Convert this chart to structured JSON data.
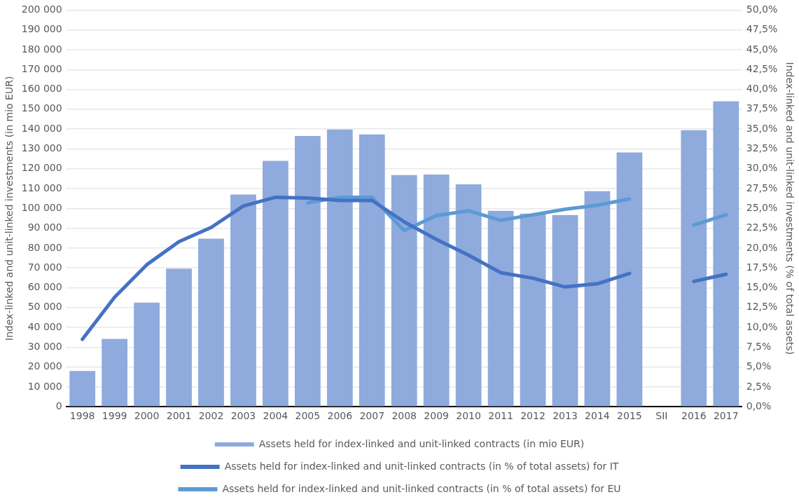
{
  "chart_data": {
    "type": "bar",
    "ylabel": "Index-linked and unit-linked investments (in mio EUR)",
    "y2label": "Index-linked and unit-linked investments (% of total assets)",
    "categories": [
      "1998",
      "1999",
      "2000",
      "2001",
      "2002",
      "2003",
      "2004",
      "2005",
      "2006",
      "2007",
      "2008",
      "2009",
      "2010",
      "2011",
      "2012",
      "2013",
      "2014",
      "2015",
      "SII",
      "2016",
      "2017"
    ],
    "series": [
      {
        "name": "Assets held for index-linked and unit-linked contracts (in mio EUR)",
        "color": "#8faadc",
        "values": [
          18000,
          34200,
          52500,
          69600,
          84700,
          107000,
          124000,
          136500,
          139800,
          137300,
          116800,
          117100,
          112100,
          98800,
          97400,
          96700,
          108700,
          128200,
          null,
          139400,
          154000
        ]
      },
      {
        "name": "Assets held for index-linked and unit-linked contracts (in % of total assets) for IT",
        "type": "line",
        "axis": "y2",
        "color": "#4472c4",
        "values": [
          8.5,
          13.8,
          17.9,
          20.8,
          22.6,
          25.3,
          26.4,
          26.3,
          26.0,
          26.0,
          23.3,
          21.1,
          19.1,
          16.9,
          16.2,
          15.1,
          15.5,
          16.8,
          null,
          15.8,
          16.7
        ]
      },
      {
        "name": "Assets held for index-linked and unit-linked contracts (in % of total assets) for EU",
        "type": "line",
        "axis": "y2",
        "color": "#5b9bd5",
        "values": [
          null,
          null,
          null,
          null,
          null,
          null,
          null,
          25.7,
          26.4,
          26.4,
          22.2,
          24.1,
          24.7,
          23.5,
          24.2,
          24.9,
          25.4,
          26.2,
          null,
          22.9,
          24.2
        ]
      }
    ],
    "ylim": [
      0,
      200000
    ],
    "yticks": [
      {
        "value": 0,
        "label": "0"
      },
      {
        "value": 10000,
        "label": "10 000"
      },
      {
        "value": 20000,
        "label": "20 000"
      },
      {
        "value": 30000,
        "label": "30 000"
      },
      {
        "value": 40000,
        "label": "40 000"
      },
      {
        "value": 50000,
        "label": "50 000"
      },
      {
        "value": 60000,
        "label": "60 000"
      },
      {
        "value": 70000,
        "label": "70 000"
      },
      {
        "value": 80000,
        "label": "80 000"
      },
      {
        "value": 90000,
        "label": "90 000"
      },
      {
        "value": 100000,
        "label": "100 000"
      },
      {
        "value": 110000,
        "label": "110 000"
      },
      {
        "value": 120000,
        "label": "120 000"
      },
      {
        "value": 130000,
        "label": "130 000"
      },
      {
        "value": 140000,
        "label": "140 000"
      },
      {
        "value": 150000,
        "label": "150 000"
      },
      {
        "value": 160000,
        "label": "160 000"
      },
      {
        "value": 170000,
        "label": "170 000"
      },
      {
        "value": 180000,
        "label": "180 000"
      },
      {
        "value": 190000,
        "label": "190 000"
      },
      {
        "value": 200000,
        "label": "200 000"
      }
    ],
    "y2lim": [
      0,
      50
    ],
    "y2ticks": [
      {
        "value": 0,
        "label": "0,0%"
      },
      {
        "value": 2.5,
        "label": "2,5%"
      },
      {
        "value": 5,
        "label": "5,0%"
      },
      {
        "value": 7.5,
        "label": "7,5%"
      },
      {
        "value": 10,
        "label": "10,0%"
      },
      {
        "value": 12.5,
        "label": "12,5%"
      },
      {
        "value": 15,
        "label": "15,0%"
      },
      {
        "value": 17.5,
        "label": "17,5%"
      },
      {
        "value": 20,
        "label": "20,0%"
      },
      {
        "value": 22.5,
        "label": "22,5%"
      },
      {
        "value": 25,
        "label": "25,0%"
      },
      {
        "value": 27.5,
        "label": "27,5%"
      },
      {
        "value": 30,
        "label": "30,0%"
      },
      {
        "value": 32.5,
        "label": "32,5%"
      },
      {
        "value": 35,
        "label": "35,0%"
      },
      {
        "value": 37.5,
        "label": "37,5%"
      },
      {
        "value": 40,
        "label": "40,0%"
      },
      {
        "value": 42.5,
        "label": "42,5%"
      },
      {
        "value": 45,
        "label": "45,0%"
      },
      {
        "value": 47.5,
        "label": "47,5%"
      },
      {
        "value": 50,
        "label": "50,0%"
      }
    ],
    "grid": "y",
    "legend": "bottom",
    "marker": "none",
    "line_style": "solid"
  }
}
